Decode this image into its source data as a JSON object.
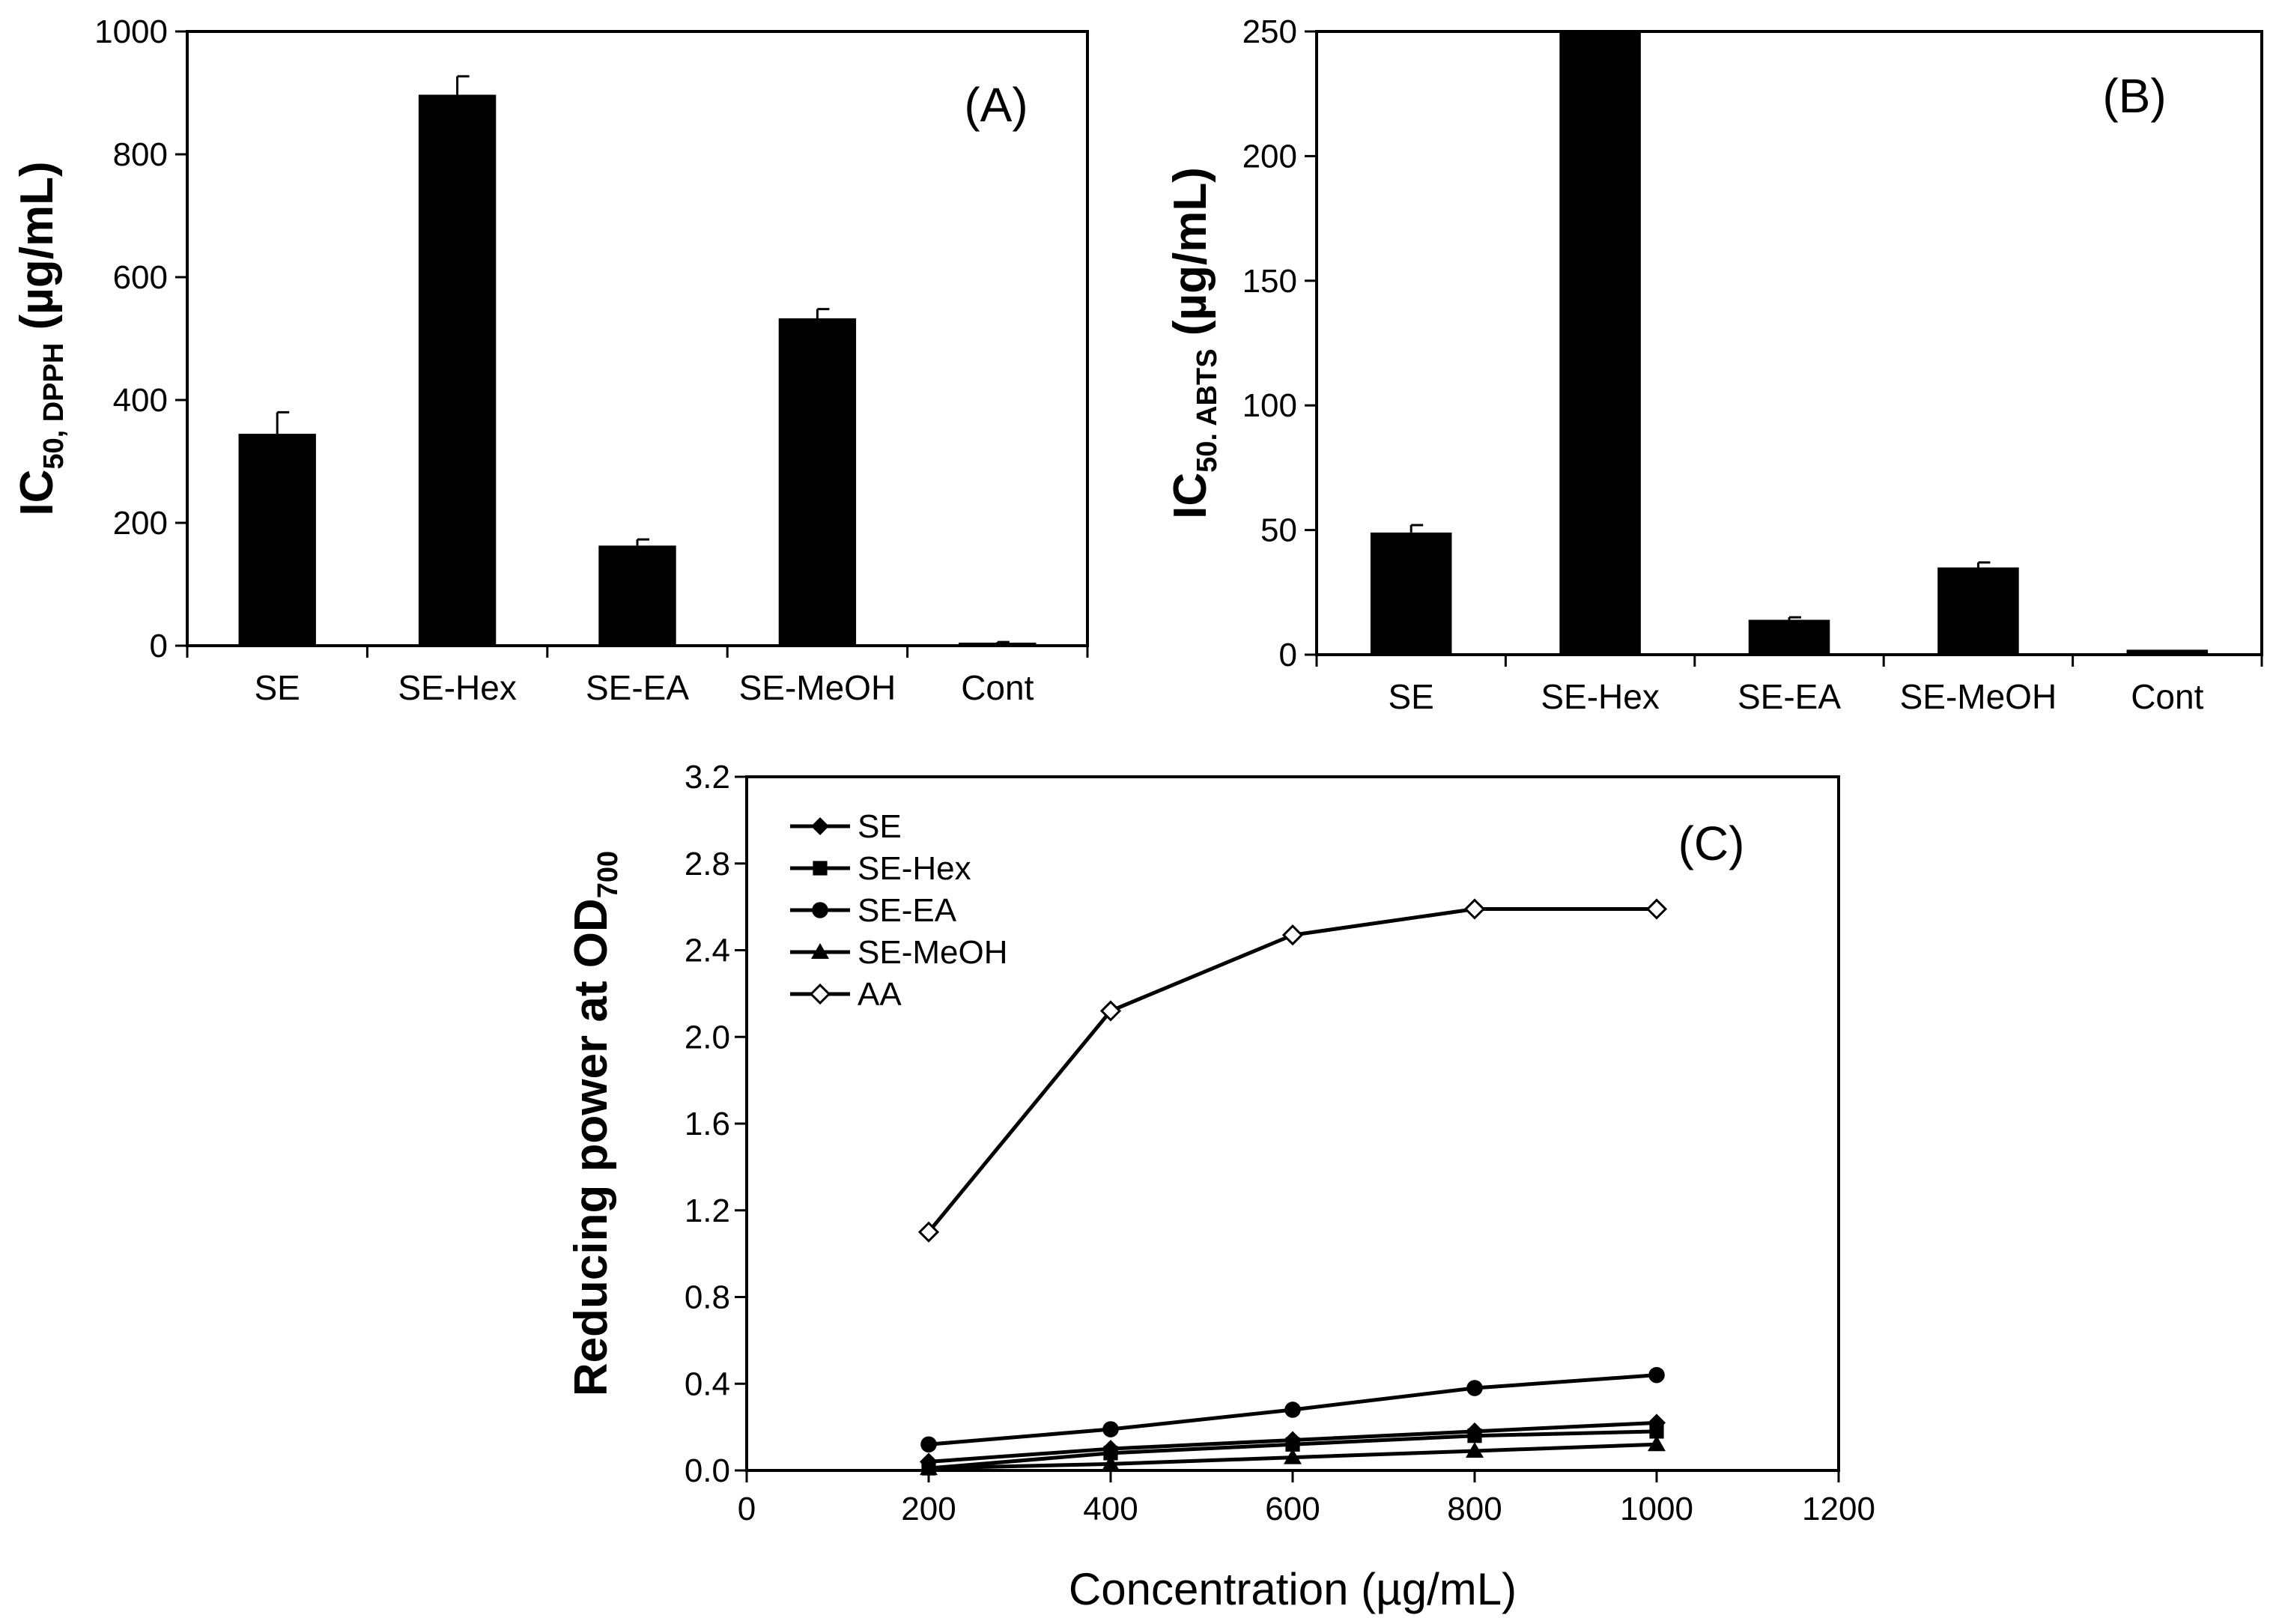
{
  "chart_data": [
    {
      "id": "A",
      "type": "bar",
      "panel_label": "(A)",
      "ylabel_main": "IC",
      "ylabel_sub": "50, DPPH",
      "ylabel_unit": " (µg/mL)",
      "categories": [
        "SE",
        "SE-Hex",
        "SE-EA",
        "SE-MeOH",
        "Cont"
      ],
      "values": [
        345,
        897,
        163,
        533,
        5
      ],
      "errors": [
        35,
        30,
        10,
        15,
        1
      ],
      "ylim": [
        0,
        1000
      ],
      "yticks": [
        "0",
        "200",
        "400",
        "600",
        "800",
        "1000"
      ]
    },
    {
      "id": "B",
      "type": "bar",
      "panel_label": "(B)",
      "ylabel_main": "IC",
      "ylabel_sub": "50. ABTS",
      "ylabel_unit": " (µg/mL)",
      "categories": [
        "SE",
        "SE-Hex",
        "SE-EA",
        "SE-MeOH",
        "Cont"
      ],
      "values": [
        49,
        250,
        14,
        35,
        2
      ],
      "errors": [
        3,
        0,
        1,
        2,
        0
      ],
      "ylim": [
        0,
        250
      ],
      "yticks": [
        "0",
        "50",
        "100",
        "150",
        "200",
        "250"
      ]
    },
    {
      "id": "C",
      "type": "line",
      "panel_label": "(C)",
      "ylabel_main": "Reducing power at OD",
      "ylabel_sub": "700",
      "xlabel": "Concentration (µg/mL)",
      "x": [
        200,
        400,
        600,
        800,
        1000
      ],
      "xlim": [
        0,
        1200
      ],
      "ylim": [
        0,
        3.2
      ],
      "xticks": [
        "0",
        "200",
        "400",
        "600",
        "800",
        "1000",
        "1200"
      ],
      "yticks": [
        "0.0",
        "0.4",
        "0.8",
        "1.2",
        "1.6",
        "2.0",
        "2.4",
        "2.8",
        "3.2"
      ],
      "series": [
        {
          "name": "SE",
          "marker": "diamond-filled",
          "values": [
            0.04,
            0.1,
            0.14,
            0.18,
            0.22
          ]
        },
        {
          "name": "SE-Hex",
          "marker": "square-filled",
          "values": [
            0.01,
            0.08,
            0.12,
            0.16,
            0.18
          ]
        },
        {
          "name": "SE-EA",
          "marker": "circle-filled",
          "values": [
            0.12,
            0.19,
            0.28,
            0.38,
            0.44
          ]
        },
        {
          "name": "SE-MeOH",
          "marker": "triangle-filled",
          "values": [
            0.01,
            0.03,
            0.06,
            0.09,
            0.12
          ]
        },
        {
          "name": "AA",
          "marker": "diamond-open",
          "values": [
            1.1,
            2.12,
            2.47,
            2.59,
            2.59
          ]
        }
      ]
    }
  ]
}
